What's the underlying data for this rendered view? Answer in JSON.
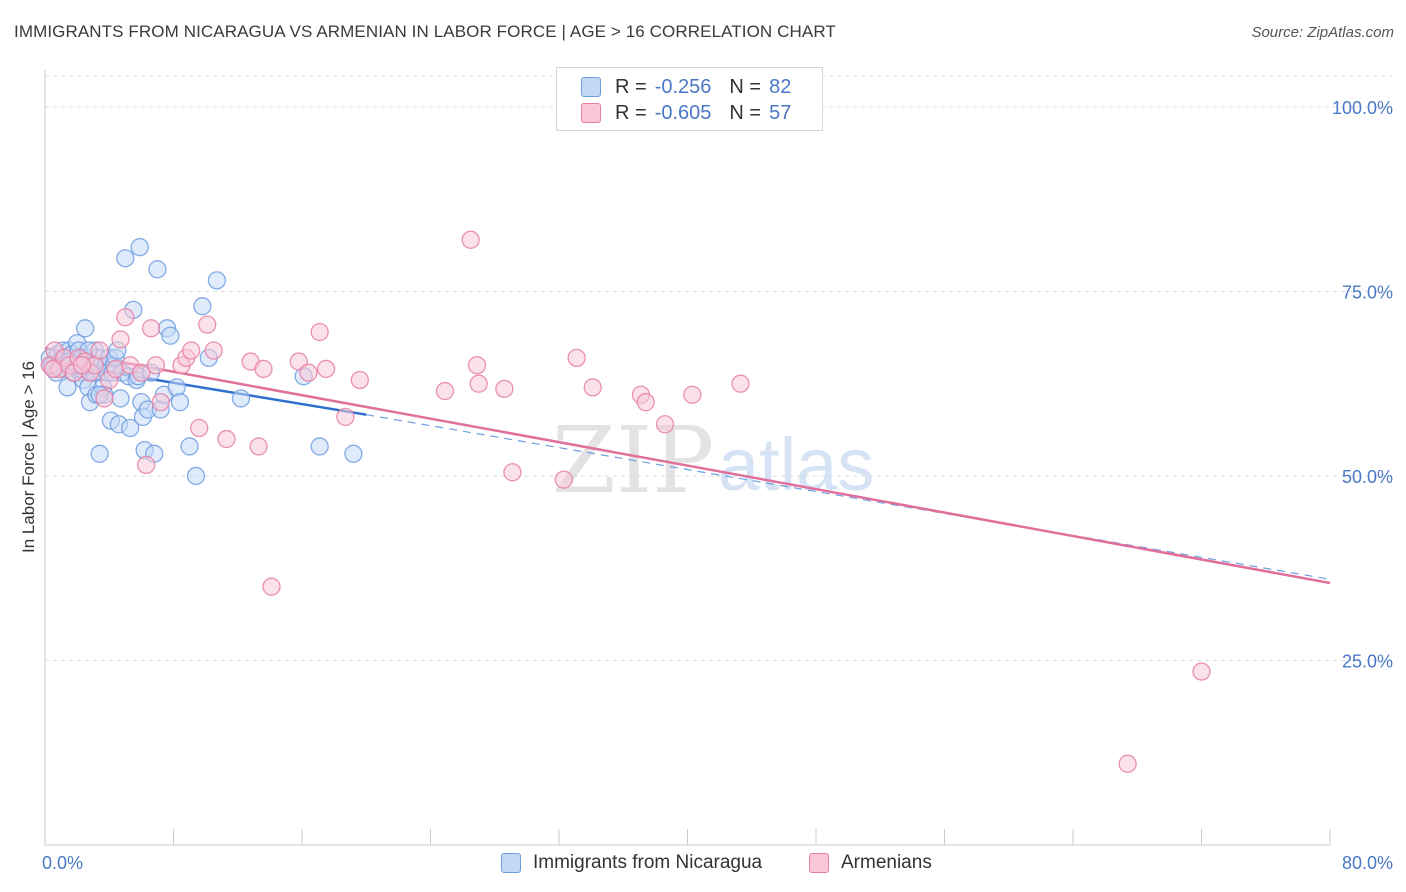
{
  "title": "IMMIGRANTS FROM NICARAGUA VS ARMENIAN IN LABOR FORCE | AGE > 16 CORRELATION CHART",
  "source": "Source: ZipAtlas.com",
  "watermark": {
    "zip": "ZIP",
    "atlas": "atlas"
  },
  "legend": {
    "r_label": "R =",
    "n_label": "N =",
    "series": [
      {
        "r": "-0.256",
        "n": "82",
        "color": "#6e9ee0",
        "fill": "#c4d8f5"
      },
      {
        "r": "-0.605",
        "n": "57",
        "color": "#e87fa3",
        "fill": "#f8c8d8"
      }
    ]
  },
  "chart_data": {
    "type": "scatter",
    "ylabel": "In Labor Force | Age > 16",
    "xlim": [
      0,
      80
    ],
    "ylim": [
      0,
      105
    ],
    "x_tick_labels": [
      "0.0%",
      "80.0%"
    ],
    "y_ticks": [
      25,
      50,
      75,
      100
    ],
    "y_tick_labels": [
      "25.0%",
      "50.0%",
      "75.0%",
      "100.0%"
    ],
    "grid": true,
    "series": [
      {
        "name": "Immigrants from Nicaragua",
        "color": "#6e9ee0",
        "fill": "#c4d8f5",
        "trend": {
          "x0": 0,
          "y0": 65.5,
          "x1": 20,
          "y1": 58.3,
          "dash_to": 80,
          "dash_y": 36.0
        },
        "points": [
          [
            0.3,
            66
          ],
          [
            0.5,
            65
          ],
          [
            0.6,
            64.5
          ],
          [
            0.8,
            66.5
          ],
          [
            0.9,
            65.5
          ],
          [
            1.0,
            65
          ],
          [
            1.1,
            67
          ],
          [
            1.2,
            66
          ],
          [
            1.3,
            64.5
          ],
          [
            1.4,
            62
          ],
          [
            1.5,
            67
          ],
          [
            1.6,
            65
          ],
          [
            1.7,
            66.5
          ],
          [
            1.8,
            64
          ],
          [
            1.9,
            65.5
          ],
          [
            2.0,
            68
          ],
          [
            2.1,
            67
          ],
          [
            2.2,
            64
          ],
          [
            2.3,
            66
          ],
          [
            2.4,
            63
          ],
          [
            2.5,
            70
          ],
          [
            2.6,
            66
          ],
          [
            2.7,
            62
          ],
          [
            2.8,
            60
          ],
          [
            2.9,
            65
          ],
          [
            3.0,
            64
          ],
          [
            3.1,
            67
          ],
          [
            3.2,
            61
          ],
          [
            3.3,
            66
          ],
          [
            3.4,
            53
          ],
          [
            3.5,
            64
          ],
          [
            3.6,
            62
          ],
          [
            3.7,
            61
          ],
          [
            3.8,
            65
          ],
          [
            3.9,
            64
          ],
          [
            4.0,
            66
          ],
          [
            4.1,
            57.5
          ],
          [
            4.2,
            64
          ],
          [
            4.3,
            65
          ],
          [
            4.4,
            66
          ],
          [
            4.5,
            67
          ],
          [
            4.6,
            57
          ],
          [
            4.7,
            60.5
          ],
          [
            4.8,
            64
          ],
          [
            5.0,
            79.5
          ],
          [
            5.2,
            63.5
          ],
          [
            5.3,
            56.5
          ],
          [
            5.5,
            72.5
          ],
          [
            5.7,
            63
          ],
          [
            5.8,
            63.5
          ],
          [
            5.9,
            81
          ],
          [
            6.0,
            60
          ],
          [
            6.1,
            58
          ],
          [
            6.2,
            53.5
          ],
          [
            6.4,
            59
          ],
          [
            6.6,
            64
          ],
          [
            6.8,
            53
          ],
          [
            7.0,
            78
          ],
          [
            7.2,
            59
          ],
          [
            7.4,
            61
          ],
          [
            7.6,
            70
          ],
          [
            7.8,
            69
          ],
          [
            8.2,
            62
          ],
          [
            8.4,
            60
          ],
          [
            9.0,
            54
          ],
          [
            9.4,
            50
          ],
          [
            9.8,
            73
          ],
          [
            10.2,
            66
          ],
          [
            10.7,
            76.5
          ],
          [
            12.2,
            60.5
          ],
          [
            16.1,
            63.5
          ],
          [
            17.1,
            54
          ],
          [
            19.2,
            53
          ],
          [
            1.1,
            65.5
          ],
          [
            1.7,
            65
          ],
          [
            2.2,
            64.5
          ],
          [
            2.7,
            67
          ],
          [
            3.4,
            61
          ],
          [
            0.4,
            65
          ],
          [
            1.5,
            65.5
          ],
          [
            0.7,
            64
          ],
          [
            2.0,
            65
          ]
        ]
      },
      {
        "name": "Armenians",
        "color": "#e87fa3",
        "fill": "#f8c8d8",
        "trend": {
          "x0": 0,
          "y0": 67.3,
          "x1": 80,
          "y1": 35.5
        },
        "points": [
          [
            0.3,
            65
          ],
          [
            0.6,
            67
          ],
          [
            0.9,
            64.5
          ],
          [
            1.2,
            66
          ],
          [
            1.5,
            65
          ],
          [
            1.8,
            64
          ],
          [
            2.1,
            66
          ],
          [
            2.5,
            65.5
          ],
          [
            2.8,
            64
          ],
          [
            3.1,
            65
          ],
          [
            3.4,
            67
          ],
          [
            3.7,
            60.5
          ],
          [
            4.0,
            63
          ],
          [
            4.4,
            64.5
          ],
          [
            4.7,
            68.5
          ],
          [
            5.0,
            71.5
          ],
          [
            5.3,
            65
          ],
          [
            6.0,
            64
          ],
          [
            6.3,
            51.5
          ],
          [
            6.6,
            70
          ],
          [
            6.9,
            65
          ],
          [
            7.2,
            60
          ],
          [
            8.5,
            65
          ],
          [
            8.8,
            66
          ],
          [
            9.1,
            67
          ],
          [
            9.6,
            56.5
          ],
          [
            10.1,
            70.5
          ],
          [
            10.5,
            67
          ],
          [
            11.3,
            55
          ],
          [
            12.8,
            65.5
          ],
          [
            13.3,
            54
          ],
          [
            13.6,
            64.5
          ],
          [
            14.1,
            35
          ],
          [
            15.8,
            65.5
          ],
          [
            16.4,
            64
          ],
          [
            17.1,
            69.5
          ],
          [
            17.5,
            64.5
          ],
          [
            18.7,
            58
          ],
          [
            19.6,
            63
          ],
          [
            24.9,
            61.5
          ],
          [
            26.5,
            82
          ],
          [
            27.0,
            62.5
          ],
          [
            28.6,
            61.8
          ],
          [
            29.1,
            50.5
          ],
          [
            32.3,
            49.5
          ],
          [
            33.1,
            66
          ],
          [
            34.1,
            62
          ],
          [
            37.1,
            61
          ],
          [
            37.4,
            60
          ],
          [
            38.6,
            57
          ],
          [
            40.3,
            61
          ],
          [
            43.3,
            62.5
          ],
          [
            72.0,
            23.5
          ],
          [
            67.4,
            11
          ],
          [
            0.5,
            64.5
          ],
          [
            2.3,
            65
          ],
          [
            26.9,
            65
          ]
        ]
      }
    ]
  }
}
